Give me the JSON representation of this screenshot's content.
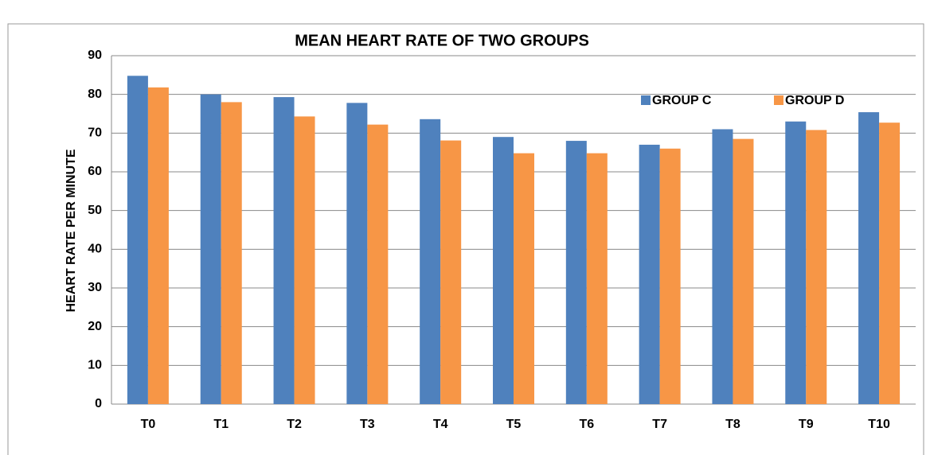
{
  "chart_data": {
    "type": "bar",
    "title": "MEAN HEART RATE OF TWO GROUPS",
    "y_label": "HEART RATE PER MINUTE",
    "categories": [
      "T0",
      "T1",
      "T2",
      "T3",
      "T4",
      "T5",
      "T6",
      "T7",
      "T8",
      "T9",
      "T10"
    ],
    "series": [
      {
        "name": "GROUP C",
        "color": "#4f81bd",
        "values": [
          84.8,
          80,
          79.3,
          77.8,
          73.6,
          69,
          68,
          67,
          71,
          73,
          75.4
        ]
      },
      {
        "name": "GROUP D",
        "color": "#f79646",
        "values": [
          81.8,
          78,
          74.3,
          72.2,
          68.1,
          64.8,
          64.8,
          66,
          68.5,
          70.8,
          72.7
        ]
      }
    ],
    "ylim": [
      0,
      90
    ],
    "yticks": [
      0,
      10,
      20,
      30,
      40,
      50,
      60,
      70,
      80,
      90
    ],
    "grid": true,
    "legend": "top-right"
  }
}
